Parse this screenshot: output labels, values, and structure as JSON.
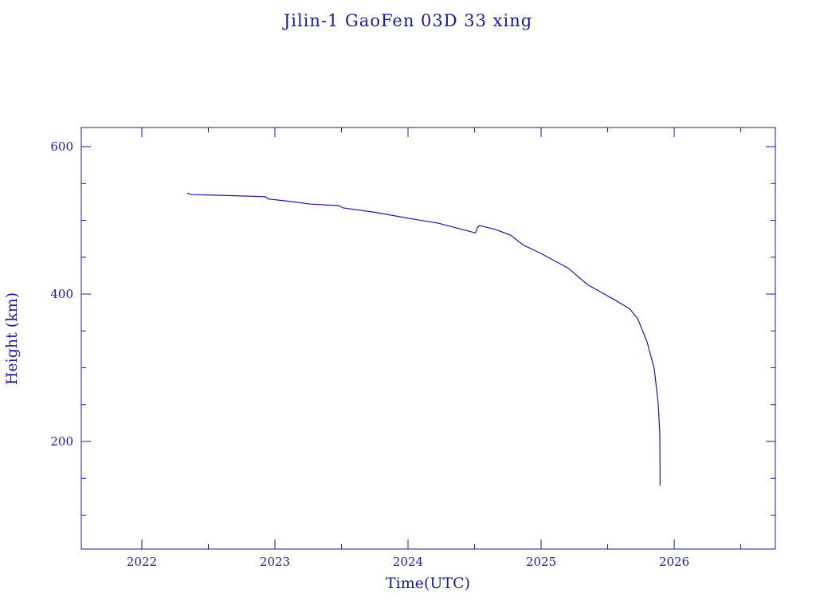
{
  "chart_data": {
    "type": "line",
    "title": "Jilin-1 GaoFen 03D 33 xing",
    "xlabel": "Time(UTC)",
    "ylabel": "Height (km)",
    "xlim": [
      2021.545,
      2026.76
    ],
    "ylim": [
      54,
      626
    ],
    "x_ticks": [
      "2022",
      "2023",
      "2024",
      "2025",
      "2026"
    ],
    "x_tick_values": [
      2022,
      2023,
      2024,
      2025,
      2026
    ],
    "y_ticks": [
      "200",
      "400",
      "600"
    ],
    "y_tick_values": [
      200,
      400,
      600
    ],
    "grid": false,
    "color": "#1a1aa0",
    "series": [
      {
        "x": [
          2022.34,
          2022.37,
          2022.6,
          2022.93,
          2022.95,
          2023.1,
          2023.27,
          2023.48,
          2023.51,
          2023.75,
          2024.0,
          2024.23,
          2024.4,
          2024.507,
          2024.52,
          2024.537,
          2024.65,
          2024.77,
          2024.866,
          2025.0,
          2025.204,
          2025.347,
          2025.563,
          2025.665,
          2025.725,
          2025.796,
          2025.85,
          2025.88,
          2025.892,
          2025.894
        ],
        "y": [
          537,
          535,
          534,
          532,
          529,
          526,
          522,
          520,
          517,
          511,
          503,
          496,
          488,
          483,
          490,
          493,
          488,
          480,
          466.5,
          455,
          435,
          413,
          391,
          380,
          367,
          335,
          299,
          251,
          210,
          140
        ]
      }
    ]
  }
}
